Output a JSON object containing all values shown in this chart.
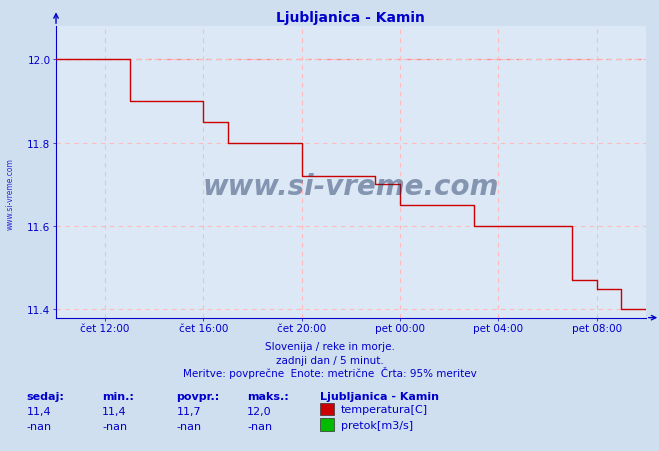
{
  "title": "Ljubljanica - Kamin",
  "bg_color": "#d0dff0",
  "plot_bg_color": "#dce8f5",
  "line_color": "#cc0000",
  "dashed_line_color": "#ff8888",
  "grid_color": "#ffbbbb",
  "axis_color": "#0000cc",
  "text_color": "#0000cc",
  "watermark": "www.si-vreme.com",
  "watermark_color": "#1a3060",
  "yticks": [
    11.4,
    11.6,
    11.8,
    12.0
  ],
  "ylim": [
    11.38,
    12.08
  ],
  "xlim_start": 0,
  "xlim_end": 288,
  "xtick_positions": [
    24,
    72,
    120,
    168,
    216,
    264
  ],
  "xtick_labels": [
    "čet 12:00",
    "čet 16:00",
    "čet 20:00",
    "pet 00:00",
    "pet 04:00",
    "pet 08:00"
  ],
  "subtitle1": "Slovenija / reke in morje.",
  "subtitle2": "zadnji dan / 5 minut.",
  "subtitle3": "Meritve: povprečne  Enote: metrične  Črta: 95% meritev",
  "legend_station": "Ljubljanica - Kamin",
  "legend_items": [
    {
      "label": "temperatura[C]",
      "color": "#cc0000"
    },
    {
      "label": "pretok[m3/s]",
      "color": "#00bb00"
    }
  ],
  "stats_headers": [
    "sedaj:",
    "min.:",
    "povpr.:",
    "maks.:"
  ],
  "stats_temp": [
    "11,4",
    "11,4",
    "11,7",
    "12,0"
  ],
  "stats_flow": [
    "-nan",
    "-nan",
    "-nan",
    "-nan"
  ],
  "temp_data_x": [
    0,
    36,
    36,
    72,
    72,
    84,
    84,
    120,
    120,
    156,
    156,
    168,
    168,
    204,
    204,
    252,
    252,
    264,
    264,
    276,
    276,
    288
  ],
  "temp_data_y": [
    12.0,
    12.0,
    11.9,
    11.9,
    11.85,
    11.85,
    11.8,
    11.8,
    11.72,
    11.72,
    11.7,
    11.7,
    11.65,
    11.65,
    11.6,
    11.6,
    11.47,
    11.47,
    11.45,
    11.45,
    11.4,
    11.4
  ],
  "max_line_y": 12.0
}
